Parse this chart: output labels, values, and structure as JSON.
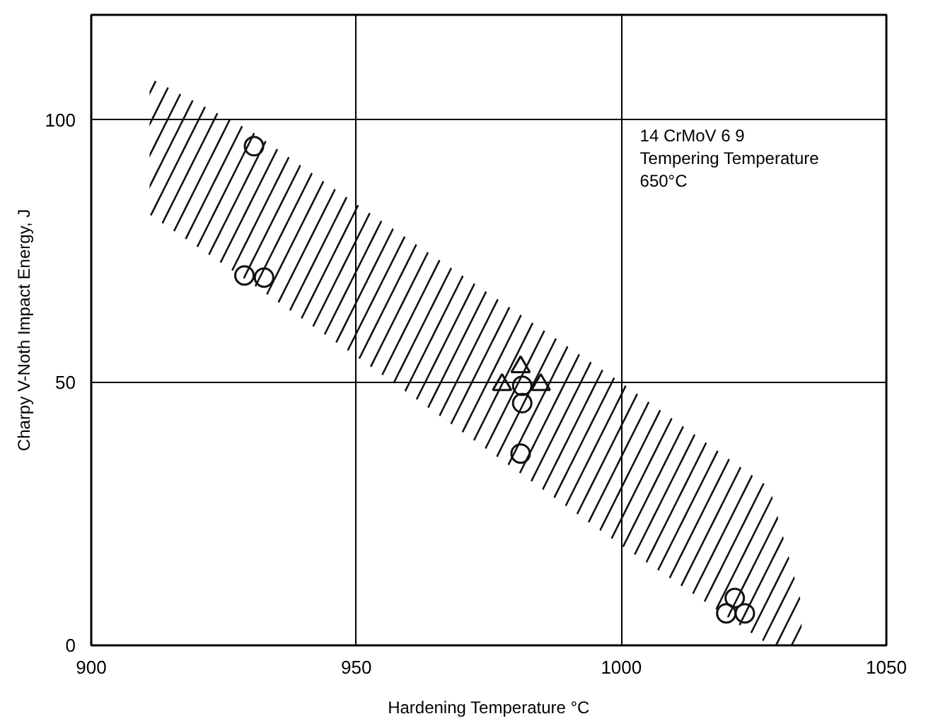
{
  "chart_data": {
    "type": "scatter",
    "xlabel": "Hardening Temperature °C",
    "ylabel": "Charpy V-Noth Impact Energy, J",
    "xlim": [
      900,
      1050
    ],
    "ylim": [
      0,
      120
    ],
    "xticks": [
      900,
      950,
      1000,
      1050
    ],
    "yticks": [
      0,
      50,
      100
    ],
    "grid": true,
    "annotations": [
      "14 CrMoV 6 9\nTempering Temperature\n650°C"
    ],
    "series": [
      {
        "type": "area",
        "color": "#111111",
        "x": [
          911,
          930,
          950,
          1000,
          1028,
          1034
        ],
        "values": [
          null,
          null,
          null,
          null,
          null,
          null
        ],
        "lower": [
          82,
          69,
          55,
          19,
          0,
          0
        ],
        "upper": [
          108,
          98,
          84,
          50,
          30,
          8
        ]
      },
      {
        "marker": "circle",
        "color": "#111111",
        "x": [
          930.7,
          928.9,
          932.6,
          981.3,
          981.3,
          981
        ],
        "values": [
          95,
          70.4,
          70,
          49.4,
          46.1,
          36.5
        ]
      },
      {
        "marker": "triangle",
        "color": "#111111",
        "x": [
          981,
          977.5,
          984.8
        ],
        "values": [
          53,
          49.6,
          49.6
        ]
      },
      {
        "marker": "circle",
        "color": "#111111",
        "x": [
          1021.4,
          1019.8,
          1023.3
        ],
        "values": [
          9,
          6.1,
          6.1
        ]
      }
    ]
  }
}
